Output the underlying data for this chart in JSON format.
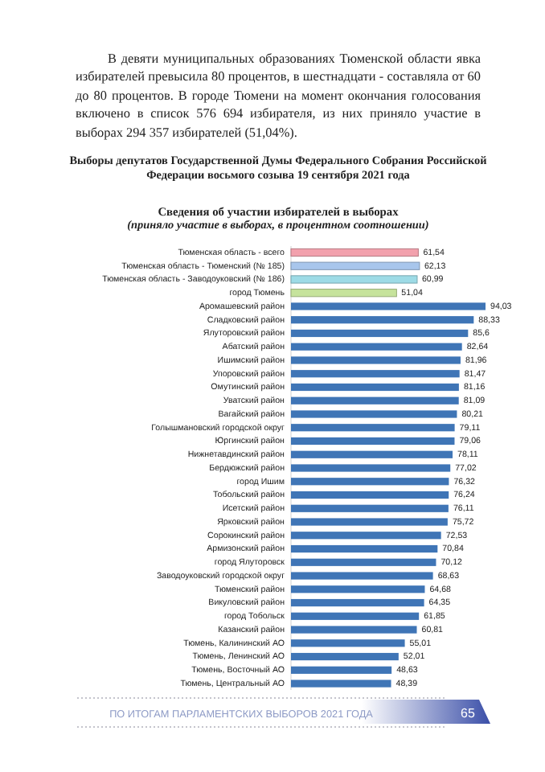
{
  "chart_data": {
    "type": "bar",
    "orientation": "horizontal",
    "title": "Выборы депутатов Государственной Думы Федерального Собрания Российской Федерации восьмого созыва 19 сентября 2021 года",
    "subtitle": "Сведения об участии избирателей в выборах",
    "xlabel": "(приняло участие в выборах, в процентном соотношении)",
    "annotations": [
      "В девяти муниципальных образованиях Тюменской области явка избирателей превысила 80 процентов, в шестнадцати - составляла от 60 до 80 процентов. В городе Тюмени на момент окончания голосования включено в список 576 694 избирателя, из них приняло участие в выборах 294 357 избирателей (51,04%).",
      "ПО ИТОГАМ ПАРЛАМЕНТСКИХ ВЫБОРОВ 2021 ГОДА",
      "65"
    ],
    "categories": [
      "Тюменская область - всего",
      "Тюменская область - Тюменский (№ 185)",
      "Тюменская область - Заводоуковский (№ 186)",
      "город Тюмень",
      "Аромашевский район",
      "Сладковский район",
      "Ялуторовский район",
      "Абатский район",
      "Ишимский район",
      "Упоровский район",
      "Омутинский район",
      "Уватский район",
      "Вагайский район",
      "Голышмановский городской округ",
      "Юргинский район",
      "Нижнетавдинский район",
      "Бердюжский район",
      "город Ишим",
      "Тобольский район",
      "Исетский район",
      "Ярковский район",
      "Сорокинский район",
      "Армизонский район",
      "город Ялуторовск",
      "Заводоуковский городской округ",
      "Тюменский район",
      "Викуловский район",
      "город Тобольск",
      "Казанский район",
      "Тюмень, Калининский АО",
      "Тюмень, Ленинский АО",
      "Тюмень, Восточный АО",
      "Тюмень, Центральный АО"
    ],
    "values": [
      61.54,
      62.13,
      60.99,
      51.04,
      94.03,
      88.33,
      85.6,
      82.64,
      81.96,
      81.47,
      81.16,
      81.09,
      80.21,
      79.11,
      79.06,
      78.11,
      77.02,
      76.32,
      76.24,
      76.11,
      75.72,
      72.53,
      70.84,
      70.12,
      68.63,
      64.68,
      64.35,
      61.85,
      60.81,
      55.01,
      52.01,
      48.63,
      48.39
    ],
    "value_labels": [
      "61,54",
      "62,13",
      "60,99",
      "51,04",
      "94,03",
      "88,33",
      "85,6",
      "82,64",
      "81,96",
      "81,47",
      "81,16",
      "81,09",
      "80,21",
      "79,11",
      "79,06",
      "78,11",
      "77,02",
      "76,32",
      "76,24",
      "76,11",
      "75,72",
      "72,53",
      "70,84",
      "70,12",
      "68,63",
      "64,68",
      "64,35",
      "61,85",
      "60,81",
      "55,01",
      "52,01",
      "48,63",
      "48,39"
    ],
    "colors": [
      "#f2a1ad",
      "#a8c6ec",
      "#9ddbe6",
      "#c6e39c",
      "#3f75b6",
      "#3f75b6",
      "#3f75b6",
      "#3f75b6",
      "#3f75b6",
      "#3f75b6",
      "#3f75b6",
      "#3f75b6",
      "#3f75b6",
      "#3f75b6",
      "#3f75b6",
      "#3f75b6",
      "#3f75b6",
      "#3f75b6",
      "#3f75b6",
      "#3f75b6",
      "#3f75b6",
      "#3f75b6",
      "#3f75b6",
      "#3f75b6",
      "#3f75b6",
      "#3f75b6",
      "#3f75b6",
      "#3f75b6",
      "#3f75b6",
      "#3f75b6",
      "#3f75b6",
      "#3f75b6",
      "#3f75b6"
    ]
  }
}
